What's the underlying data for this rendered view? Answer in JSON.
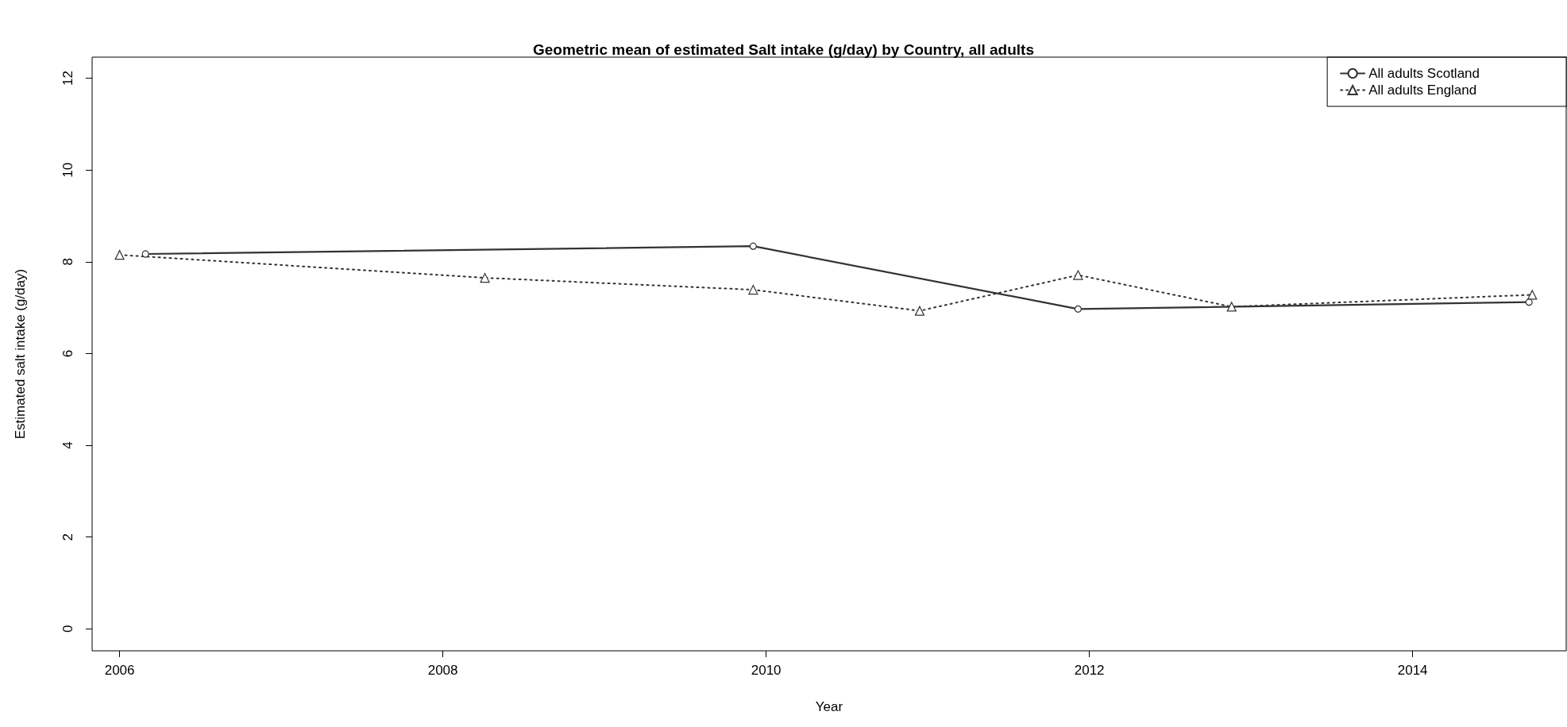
{
  "chart_data": {
    "type": "line",
    "title": "Geometric mean of estimated Salt intake (g/day) by Country, all adults",
    "xlabel": "Year",
    "ylabel": "Estimated salt intake (g/day)",
    "series": [
      {
        "name": "All adults Scotland",
        "color": "#333333",
        "marker": "circle",
        "line_style": "solid",
        "x": [
          2006.16,
          2009.92,
          2011.93,
          2014.72
        ],
        "values": [
          8.17,
          8.34,
          6.97,
          7.12
        ]
      },
      {
        "name": "All adults England",
        "color": "#333333",
        "marker": "triangle",
        "line_style": "dotted",
        "x": [
          2006.0,
          2008.26,
          2009.92,
          2010.95,
          2011.93,
          2012.88,
          2014.74
        ],
        "values": [
          8.15,
          7.65,
          7.39,
          6.93,
          7.71,
          7.02,
          7.28
        ]
      }
    ],
    "xlim": [
      2005.83,
      2014.95
    ],
    "xticks": [
      2006,
      2008,
      2010,
      2012,
      2014
    ],
    "ylim": [
      -0.48,
      12.46
    ],
    "yticks": [
      0,
      2,
      4,
      6,
      8,
      10,
      12
    ],
    "grid": false,
    "legend": "top right"
  }
}
